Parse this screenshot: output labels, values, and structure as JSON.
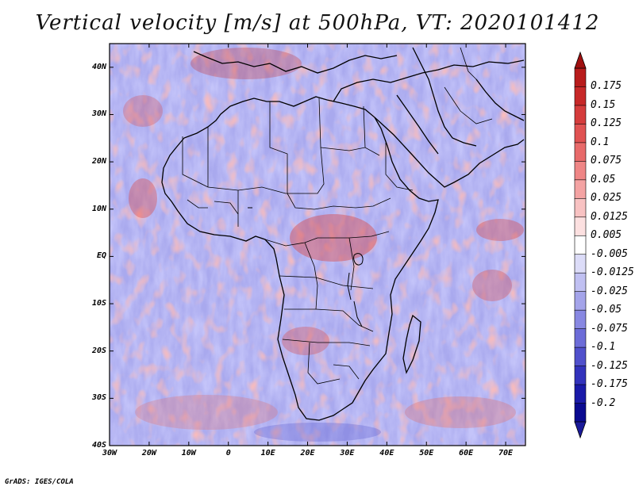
{
  "title": "Vertical velocity [m/s] at 500hPa, VT: 2020101412",
  "credit": "GrADS: IGES/COLA",
  "lat_labels": [
    "40N",
    "30N",
    "20N",
    "10N",
    "EQ",
    "10S",
    "20S",
    "30S",
    "40S"
  ],
  "lon_labels": [
    "30W",
    "20W",
    "10W",
    "0",
    "10E",
    "20E",
    "30E",
    "40E",
    "50E",
    "60E",
    "70E"
  ],
  "map_extent": {
    "lon": [
      -30,
      75
    ],
    "lat": [
      -40,
      45
    ]
  },
  "colorbar": {
    "labels": [
      "0.175",
      "0.15",
      "0.125",
      "0.1",
      "0.075",
      "0.05",
      "0.025",
      "0.0125",
      "0.005",
      "-0.005",
      "-0.0125",
      "-0.025",
      "-0.05",
      "-0.075",
      "-0.1",
      "-0.125",
      "-0.175",
      "-0.2"
    ],
    "colors": [
      "#b81c1c",
      "#c72828",
      "#d53c3c",
      "#e05252",
      "#e86a6a",
      "#ef8686",
      "#f4a3a3",
      "#f8c2c2",
      "#fce0e0",
      "#ffffff",
      "#dcdcf8",
      "#c0c0f2",
      "#a4a4ea",
      "#8888e2",
      "#6c6cd8",
      "#5050cc",
      "#3232bc",
      "#1a1aa8",
      "#0a0a90"
    ]
  },
  "colors": {
    "land_outline": "#000000",
    "positive": "#e05252",
    "negative": "#6c6cd8"
  }
}
